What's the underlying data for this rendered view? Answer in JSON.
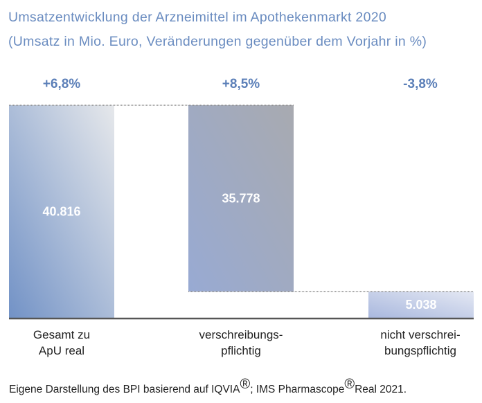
{
  "chart_data": {
    "type": "bar",
    "subtype": "waterfall",
    "title": "Umsatzentwicklung der Arzneimittel im Apothekenmarkt 2020",
    "subtitle": "(Umsatz in Mio. Euro, Veränderungen gegenüber dem Vorjahr in %)",
    "categories": [
      "Gesamt zu\nApU real",
      "verschreibungs-\npflichtig",
      "nicht verschrei-\nbungspflichtig"
    ],
    "values": [
      40816,
      35778,
      5038
    ],
    "value_labels": [
      "40.816",
      "35.778",
      "5.038"
    ],
    "changes": [
      "+6,8%",
      "+8,5%",
      "-3,8%"
    ],
    "grid": false,
    "colors": {
      "bar_dark": "#7292c6",
      "bar_light": "#e4e6ea",
      "bar2_right": "#a8aab0",
      "title": "#6a8cc0",
      "change": "#5b7fb8"
    }
  },
  "footer": {
    "text_1": "Eigene Darstellung des BPI basierend auf IQVIA",
    "reg": "®",
    "text_2": "; IMS Pharmascope",
    "text_3": "Real 2021."
  }
}
